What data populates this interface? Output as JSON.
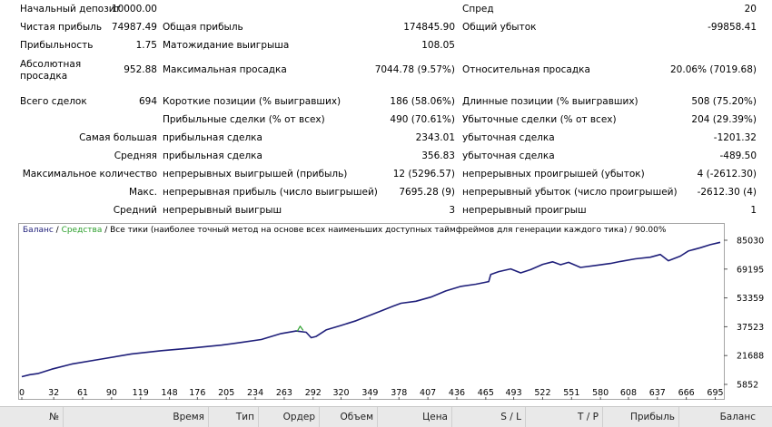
{
  "stats": {
    "initial_deposit_label": "Начальный депозит",
    "initial_deposit_value": "10000.00",
    "spread_label": "Спред",
    "spread_value": "20",
    "net_profit_label": "Чистая прибыль",
    "net_profit_value": "74987.49",
    "gross_profit_label": "Общая прибыль",
    "gross_profit_value": "174845.90",
    "gross_loss_label": "Общий убыток",
    "gross_loss_value": "-99858.41",
    "profit_factor_label": "Прибыльность",
    "profit_factor_value": "1.75",
    "expected_payoff_label": "Матожидание выигрыша",
    "expected_payoff_value": "108.05",
    "abs_dd_label_1": "Абсолютная",
    "abs_dd_label_2": "просадка",
    "abs_dd_value": "952.88",
    "max_dd_label": "Максимальная просадка",
    "max_dd_value": "7044.78 (9.57%)",
    "rel_dd_label": "Относительная просадка",
    "rel_dd_value": "20.06% (7019.68)",
    "total_trades_label": "Всего сделок",
    "total_trades_value": "694",
    "short_label": "Короткие позиции (% выигравших)",
    "short_value": "186 (58.06%)",
    "long_label": "Длинные позиции (% выигравших)",
    "long_value": "508 (75.20%)",
    "profit_trades_label": "Прибыльные сделки (% от всех)",
    "profit_trades_value": "490 (70.61%)",
    "loss_trades_label": "Убыточные сделки (% от всех)",
    "loss_trades_value": "204 (29.39%)",
    "largest_label": "Самая большая",
    "largest_profit_label": "прибыльная сделка",
    "largest_profit_value": "2343.01",
    "largest_loss_label": "убыточная сделка",
    "largest_loss_value": "-1201.32",
    "average_label": "Средняя",
    "average_profit_label": "прибыльная сделка",
    "average_profit_value": "356.83",
    "average_loss_label": "убыточная сделка",
    "average_loss_value": "-489.50",
    "max_count_label": "Максимальное количество",
    "max_cons_wins_label": "непрерывных выигрышей (прибыль)",
    "max_cons_wins_value": "12 (5296.57)",
    "max_cons_losses_label": "непрерывных проигрышей (убыток)",
    "max_cons_losses_value": "4 (-2612.30)",
    "max_label": "Макс.",
    "max_cons_profit_label": "непрерывная прибыль (число выигрышей)",
    "max_cons_profit_value": "7695.28 (9)",
    "max_cons_loss_label": "непрерывный убыток (число проигрышей)",
    "max_cons_loss_value": "-2612.30 (4)",
    "avg_cons_label": "Средний",
    "avg_cons_wins_label": "непрерывный выигрыш",
    "avg_cons_wins_value": "3",
    "avg_cons_losses_label": "непрерывный проигрыш",
    "avg_cons_losses_value": "1"
  },
  "chart_data": {
    "type": "line",
    "legend_balance": "Баланс",
    "legend_sep1": " / ",
    "legend_equity": "Средства",
    "legend_sep2": " / ",
    "legend_info": "Все тики (наиболее точный метод на основе всех наименьших доступных таймфреймов для генерации каждого тика) / 90.00%",
    "x_ticks": [
      "0",
      "32",
      "61",
      "90",
      "119",
      "148",
      "176",
      "205",
      "234",
      "263",
      "292",
      "320",
      "349",
      "378",
      "407",
      "436",
      "465",
      "493",
      "522",
      "551",
      "580",
      "608",
      "637",
      "666",
      "695"
    ],
    "y_ticks": [
      "85030",
      "69195",
      "53359",
      "37523",
      "21688",
      "5852"
    ],
    "xlim": [
      0,
      700
    ],
    "ylim": [
      5852,
      85030
    ],
    "series": [
      {
        "name": "Баланс",
        "color": "#1f1f7a",
        "x": [
          0,
          8,
          16,
          30,
          50,
          80,
          110,
          140,
          170,
          200,
          220,
          240,
          260,
          275,
          285,
          290,
          295,
          305,
          320,
          335,
          349,
          360,
          372,
          380,
          395,
          410,
          425,
          440,
          455,
          468,
          470,
          478,
          490,
          500,
          510,
          522,
          532,
          540,
          548,
          560,
          575,
          590,
          600,
          615,
          630,
          640,
          648,
          660,
          668,
          680,
          690,
          700
        ],
        "y": [
          10100,
          11200,
          11800,
          14200,
          17000,
          19800,
          22600,
          24400,
          25800,
          27400,
          28900,
          30500,
          33800,
          35200,
          34500,
          31500,
          32200,
          35800,
          38200,
          40800,
          43800,
          46200,
          48800,
          50400,
          51500,
          53800,
          57200,
          59700,
          60900,
          62300,
          66200,
          67800,
          69300,
          67100,
          68900,
          71800,
          73200,
          71600,
          72900,
          70100,
          71200,
          72300,
          73400,
          74800,
          75700,
          77200,
          73800,
          76300,
          79100,
          80900,
          82600,
          83900
        ]
      },
      {
        "name": "Средства",
        "color": "#2ea02e",
        "x": [
          276,
          279,
          282
        ],
        "y": [
          35000,
          37800,
          35500
        ]
      }
    ]
  },
  "results_table": {
    "columns": [
      "№",
      "Время",
      "Тип",
      "Ордер",
      "Объем",
      "Цена",
      "S / L",
      "T / P",
      "Прибыль",
      "Баланс"
    ]
  }
}
